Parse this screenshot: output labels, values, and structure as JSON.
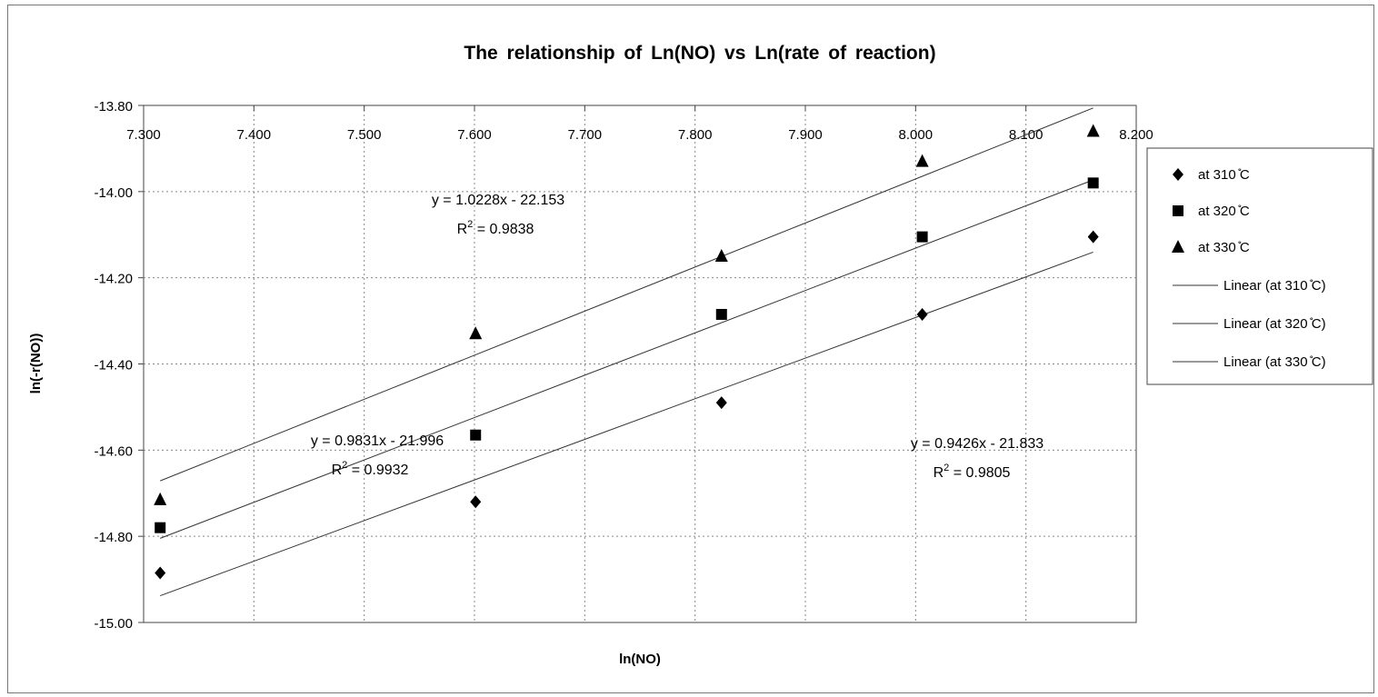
{
  "chart_data": {
    "type": "scatter",
    "title": "The relationship of Ln(NO) vs Ln(rate of reaction)",
    "xlabel": "ln(NO)",
    "ylabel": "ln(-r(NO))",
    "xlim": [
      7.3,
      8.2
    ],
    "ylim": [
      -15.0,
      -13.8
    ],
    "x_ticks": [
      "7.300",
      "7.400",
      "7.500",
      "7.600",
      "7.700",
      "7.800",
      "7.900",
      "8.000",
      "8.100",
      "8.200"
    ],
    "y_ticks": [
      "-13.80",
      "-14.00",
      "-14.20",
      "-14.40",
      "-14.60",
      "-14.80",
      "-15.00"
    ],
    "x_axis_position": "top",
    "grid": true,
    "legend_position": "right",
    "x": [
      7.315,
      7.601,
      7.824,
      8.006,
      8.161
    ],
    "series": [
      {
        "name": "at 310 ̊C",
        "marker": "diamond",
        "y": [
          -14.885,
          -14.72,
          -14.49,
          -14.285,
          -14.105
        ]
      },
      {
        "name": "at 320 ̊C",
        "marker": "square",
        "y": [
          -14.78,
          -14.565,
          -14.285,
          -14.105,
          -13.98
        ]
      },
      {
        "name": "at 330 ̊C",
        "marker": "triangle",
        "y": [
          -14.715,
          -14.33,
          -14.15,
          -13.93,
          -13.86
        ]
      }
    ],
    "trendlines": [
      {
        "name": "Linear (at 310 ̊C)",
        "slope": 0.9426,
        "intercept": -21.833
      },
      {
        "name": "Linear (at 320 ̊C)",
        "slope": 0.9831,
        "intercept": -21.996
      },
      {
        "name": "Linear (at 330 ̊C)",
        "slope": 1.0228,
        "intercept": -22.153
      }
    ],
    "annotations": [
      {
        "equation": "y = 1.0228x - 22.153",
        "r2_prefix": "R",
        "r2_sup": "2",
        "r2_value": " = 0.9838"
      },
      {
        "equation": "y = 0.9831x - 21.996",
        "r2_prefix": "R",
        "r2_sup": "2",
        "r2_value": " = 0.9932"
      },
      {
        "equation": "y = 0.9426x - 21.833",
        "r2_prefix": "R",
        "r2_sup": "2",
        "r2_value": " = 0.9805"
      }
    ]
  }
}
